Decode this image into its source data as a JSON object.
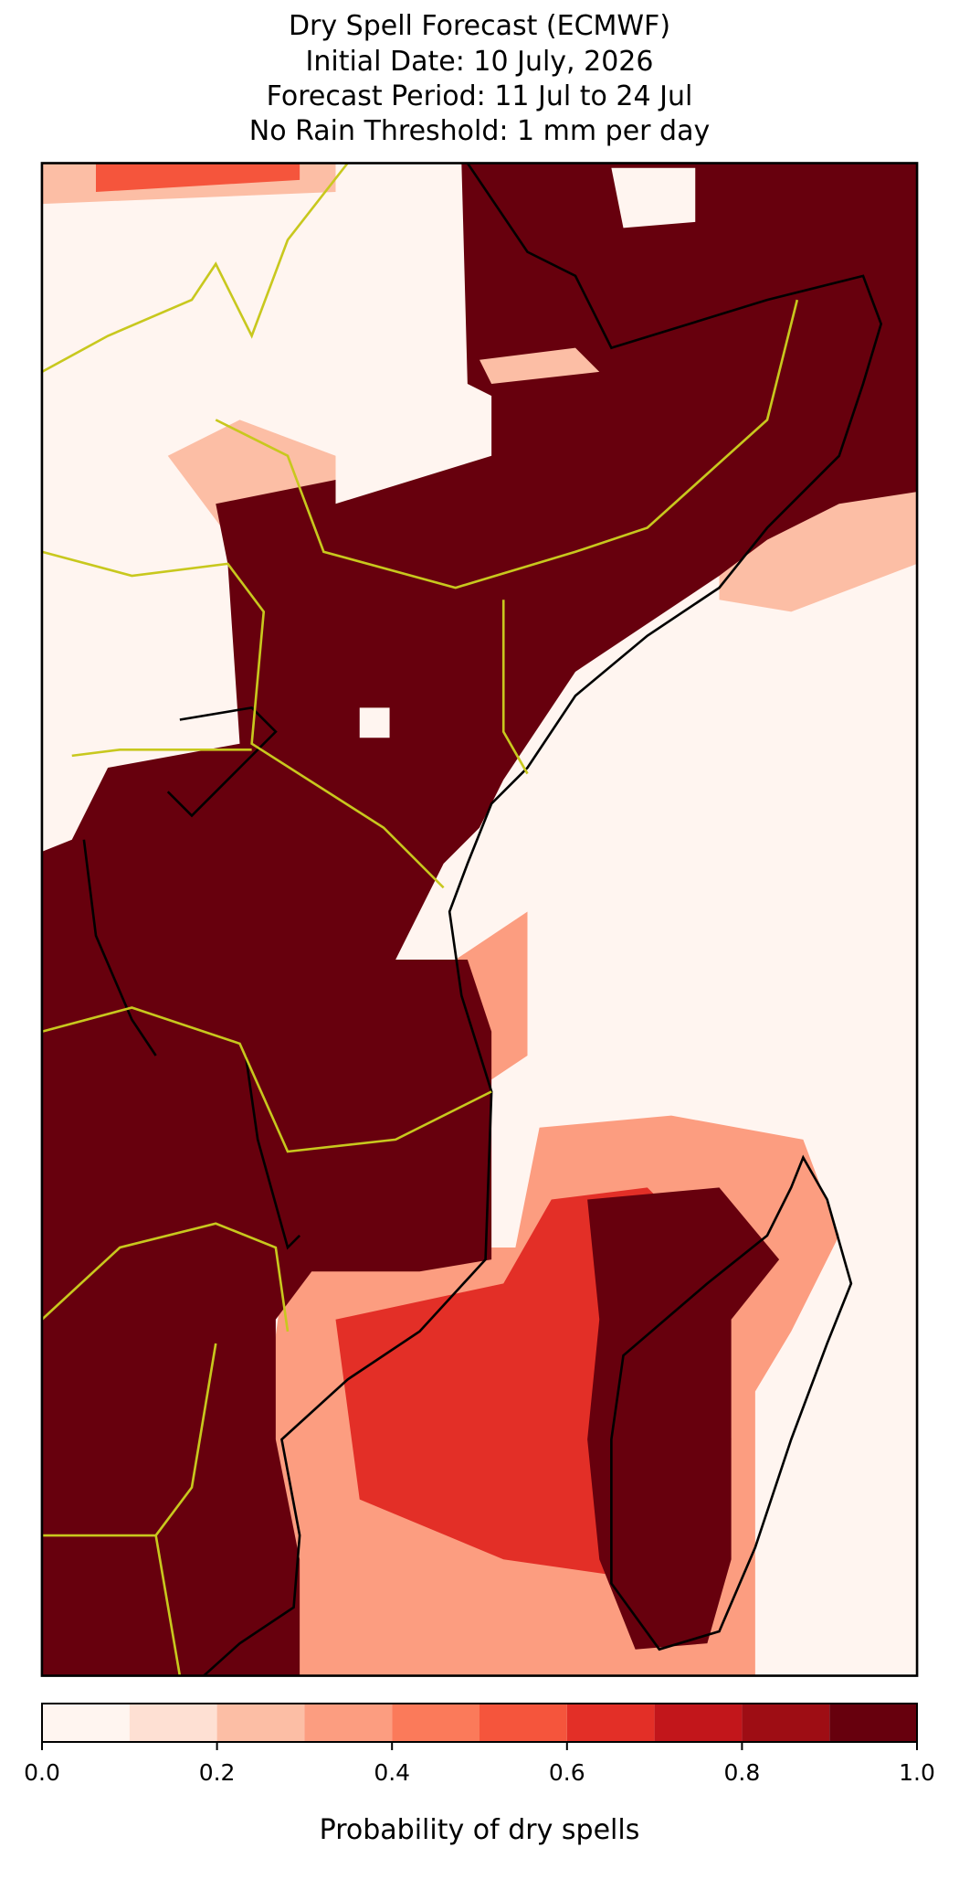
{
  "title_lines": [
    "Dry Spell Forecast (ECMWF)",
    "Initial Date: 10 July, 2026",
    "Forecast Period: 11 Jul to 24 Jul",
    "No Rain Threshold: 1 mm per day"
  ],
  "colorbar": {
    "label": "Probability of dry spells",
    "lim": [
      0,
      1
    ],
    "bounds": [
      0,
      0.1,
      0.2,
      0.3,
      0.4,
      0.5,
      0.6,
      0.7,
      0.8,
      0.9,
      1.0
    ],
    "colors": [
      "#fff5f0",
      "#fee0d3",
      "#fcbea5",
      "#fc9d80",
      "#fb7a5a",
      "#f5553c",
      "#e32f27",
      "#c2161b",
      "#9e0d14",
      "#67000d"
    ],
    "ticks": [
      {
        "value": 0,
        "label": "0.0"
      },
      {
        "value": 0.2,
        "label": "0.2"
      },
      {
        "value": 0.4,
        "label": "0.4"
      },
      {
        "value": 0.6,
        "label": "0.6"
      },
      {
        "value": 0.8,
        "label": "0.8"
      },
      {
        "value": 1.0,
        "label": "1.0"
      }
    ]
  }
}
